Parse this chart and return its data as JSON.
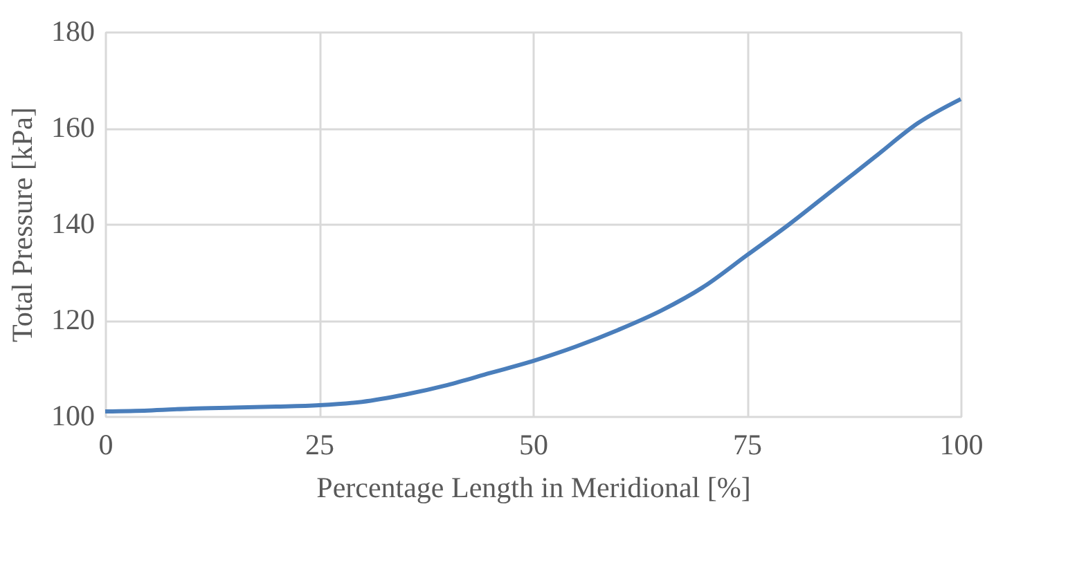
{
  "chart_data": {
    "type": "line",
    "xlabel": "Percentage Length in Meridional [%]",
    "ylabel": "Total Pressure [kPa]",
    "x": [
      0,
      5,
      10,
      15,
      20,
      25,
      30,
      35,
      40,
      45,
      50,
      55,
      60,
      65,
      70,
      75,
      80,
      85,
      90,
      95,
      100
    ],
    "series": [
      {
        "color": "#4a7ebb",
        "values": [
          101,
          101.2,
          101.6,
          101.8,
          102,
          102.3,
          103,
          104.5,
          106.5,
          109,
          111.5,
          114.5,
          118,
          122,
          127,
          133.5,
          140,
          147,
          154,
          161,
          166
        ]
      }
    ],
    "xlim": [
      0,
      100
    ],
    "xticks": [
      0,
      25,
      50,
      75,
      100
    ],
    "ylim": [
      100,
      180
    ],
    "yticks": [
      100,
      120,
      140,
      160,
      180
    ],
    "grid": true,
    "marker": "none",
    "line_style": "solid"
  }
}
